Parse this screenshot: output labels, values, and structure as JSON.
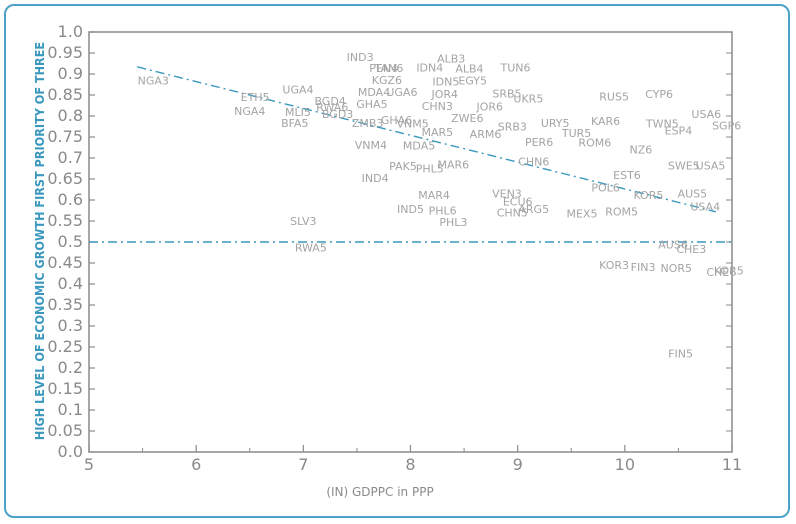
{
  "chart_data": {
    "type": "scatter",
    "title": "",
    "xlabel": "(IN) GDPPC in PPP",
    "ylabel": "HIGH LEVEL OF ECONOMIC GROWTH FIRST PRIORITY OF THREE",
    "xlim": [
      5,
      11
    ],
    "ylim": [
      0,
      1
    ],
    "x_ticks": [
      "5",
      "6",
      "7",
      "8",
      "9",
      "10",
      "11"
    ],
    "y_ticks": [
      "0.0",
      "0.05",
      "0.1",
      "0.15",
      "0.2",
      "0.25",
      "0.3",
      "0.35",
      "0.4",
      "0.45",
      "0.5",
      "0.55",
      "0.6",
      "0.65",
      "0.7",
      "0.75",
      "0.8",
      "0.85",
      "0.9",
      "0.95",
      "1.0"
    ],
    "grid": false,
    "colors": {
      "text_accent": "#3a98bf",
      "line": "#3a98bf",
      "labels": "#a4a4a4",
      "axes": "#8a8a8a",
      "border": "#4aa3c7"
    },
    "reference_line": {
      "y": 0.5,
      "style": "dash-dot"
    },
    "fit_line": {
      "x": [
        5.45,
        10.85
      ],
      "y": [
        0.917,
        0.572
      ],
      "style": "dash-dot"
    },
    "points": [
      {
        "label": "NGA3",
        "x": 5.6,
        "y": 0.885
      },
      {
        "label": "ETH5",
        "x": 6.55,
        "y": 0.845
      },
      {
        "label": "NGA4",
        "x": 6.5,
        "y": 0.812
      },
      {
        "label": "UGA4",
        "x": 6.95,
        "y": 0.863
      },
      {
        "label": "BGD4",
        "x": 7.25,
        "y": 0.836
      },
      {
        "label": "MLI5",
        "x": 6.95,
        "y": 0.809
      },
      {
        "label": "RWA6",
        "x": 7.27,
        "y": 0.821
      },
      {
        "label": "BGD3",
        "x": 7.32,
        "y": 0.805
      },
      {
        "label": "BFA5",
        "x": 6.92,
        "y": 0.783
      },
      {
        "label": "IND3",
        "x": 7.53,
        "y": 0.941
      },
      {
        "label": "PEN4",
        "x": 7.75,
        "y": 0.914
      },
      {
        "label": "TAN6",
        "x": 7.8,
        "y": 0.914
      },
      {
        "label": "IDN4",
        "x": 8.18,
        "y": 0.915
      },
      {
        "label": "ALB3",
        "x": 8.38,
        "y": 0.937
      },
      {
        "label": "ALB4",
        "x": 8.55,
        "y": 0.913
      },
      {
        "label": "TUN6",
        "x": 8.98,
        "y": 0.915
      },
      {
        "label": "KGZ6",
        "x": 7.78,
        "y": 0.886
      },
      {
        "label": "IDN5",
        "x": 8.33,
        "y": 0.882
      },
      {
        "label": "EGY5",
        "x": 8.58,
        "y": 0.884
      },
      {
        "label": "MDA4",
        "x": 7.66,
        "y": 0.857
      },
      {
        "label": "UGA6",
        "x": 7.92,
        "y": 0.857
      },
      {
        "label": "JOR4",
        "x": 8.32,
        "y": 0.852
      },
      {
        "label": "GHA5",
        "x": 7.64,
        "y": 0.828
      },
      {
        "label": "CHN3",
        "x": 8.25,
        "y": 0.824
      },
      {
        "label": "ZWE6",
        "x": 8.53,
        "y": 0.795
      },
      {
        "label": "JOR6",
        "x": 8.74,
        "y": 0.823
      },
      {
        "label": "SRB5",
        "x": 8.9,
        "y": 0.853
      },
      {
        "label": "UKR5",
        "x": 9.1,
        "y": 0.842
      },
      {
        "label": "RUS5",
        "x": 9.9,
        "y": 0.847
      },
      {
        "label": "CYP6",
        "x": 10.32,
        "y": 0.852
      },
      {
        "label": "USA6",
        "x": 10.76,
        "y": 0.805
      },
      {
        "label": "SGP6",
        "x": 10.95,
        "y": 0.777
      },
      {
        "label": "ZMB3",
        "x": 7.6,
        "y": 0.783
      },
      {
        "label": "GHA6",
        "x": 7.87,
        "y": 0.79
      },
      {
        "label": "VNM5",
        "x": 8.02,
        "y": 0.782
      },
      {
        "label": "MAR5",
        "x": 8.25,
        "y": 0.762
      },
      {
        "label": "SRB3",
        "x": 8.95,
        "y": 0.775
      },
      {
        "label": "URY5",
        "x": 9.35,
        "y": 0.783
      },
      {
        "label": "TUR5",
        "x": 9.55,
        "y": 0.76
      },
      {
        "label": "KAR6",
        "x": 9.82,
        "y": 0.788
      },
      {
        "label": "TWN5",
        "x": 10.35,
        "y": 0.782
      },
      {
        "label": "ESP4",
        "x": 10.5,
        "y": 0.765
      },
      {
        "label": "VNM4",
        "x": 7.63,
        "y": 0.731
      },
      {
        "label": "MDA5",
        "x": 8.08,
        "y": 0.73
      },
      {
        "label": "ARM6",
        "x": 8.7,
        "y": 0.757
      },
      {
        "label": "PER6",
        "x": 9.2,
        "y": 0.738
      },
      {
        "label": "ROM6",
        "x": 9.72,
        "y": 0.737
      },
      {
        "label": "NZ6",
        "x": 10.15,
        "y": 0.72
      },
      {
        "label": "PAK5",
        "x": 7.93,
        "y": 0.681
      },
      {
        "label": "PHL5",
        "x": 8.18,
        "y": 0.675
      },
      {
        "label": "MAR6",
        "x": 8.4,
        "y": 0.684
      },
      {
        "label": "CHN6",
        "x": 9.15,
        "y": 0.692
      },
      {
        "label": "USA5",
        "x": 10.8,
        "y": 0.682
      },
      {
        "label": "SWE5",
        "x": 10.55,
        "y": 0.682
      },
      {
        "label": "IND4",
        "x": 7.67,
        "y": 0.652
      },
      {
        "label": "MAR4",
        "x": 8.22,
        "y": 0.612
      },
      {
        "label": "POL6",
        "x": 9.82,
        "y": 0.63
      },
      {
        "label": "EST6",
        "x": 10.02,
        "y": 0.66
      },
      {
        "label": "KOR5",
        "x": 10.22,
        "y": 0.612
      },
      {
        "label": "AUS5",
        "x": 10.63,
        "y": 0.615
      },
      {
        "label": "IND5",
        "x": 8.0,
        "y": 0.578
      },
      {
        "label": "PHL6",
        "x": 8.3,
        "y": 0.575
      },
      {
        "label": "PHL3",
        "x": 8.4,
        "y": 0.548
      },
      {
        "label": "VEN3",
        "x": 8.9,
        "y": 0.615
      },
      {
        "label": "ECU6",
        "x": 9.0,
        "y": 0.597
      },
      {
        "label": "ARG5",
        "x": 9.15,
        "y": 0.578
      },
      {
        "label": "MEX5",
        "x": 9.6,
        "y": 0.568
      },
      {
        "label": "CHN5",
        "x": 8.95,
        "y": 0.57
      },
      {
        "label": "ROM5",
        "x": 9.97,
        "y": 0.573
      },
      {
        "label": "USA4",
        "x": 10.75,
        "y": 0.584
      },
      {
        "label": "SLV3",
        "x": 7.0,
        "y": 0.55
      },
      {
        "label": "RWA5",
        "x": 7.07,
        "y": 0.487
      },
      {
        "label": "CHE3",
        "x": 10.62,
        "y": 0.483
      },
      {
        "label": "AUS6",
        "x": 10.45,
        "y": 0.494
      },
      {
        "label": "KOR3",
        "x": 9.9,
        "y": 0.445
      },
      {
        "label": "FIN3",
        "x": 10.17,
        "y": 0.44
      },
      {
        "label": "NOR5",
        "x": 10.48,
        "y": 0.438
      },
      {
        "label": "CHE6",
        "x": 10.9,
        "y": 0.428
      },
      {
        "label": "KOR5",
        "x": 10.97,
        "y": 0.432
      },
      {
        "label": "FIN5",
        "x": 10.52,
        "y": 0.235
      }
    ]
  }
}
